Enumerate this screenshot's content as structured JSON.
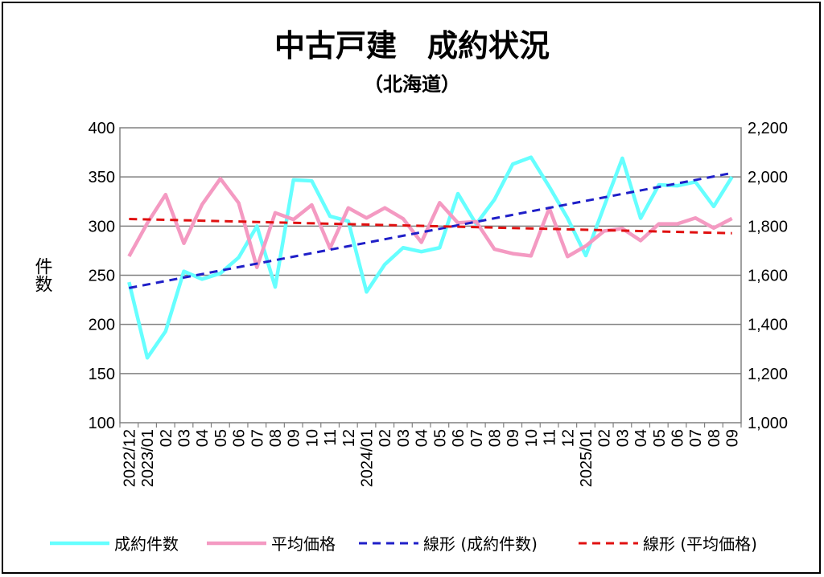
{
  "chart_data": {
    "type": "line",
    "title": "中古戸建　成約状況",
    "subtitle": "（北海道）",
    "ylabel_left": "件数",
    "ylim_left": [
      100,
      400
    ],
    "yticks_left": [
      "100",
      "150",
      "200",
      "250",
      "300",
      "350",
      "400"
    ],
    "ylim_right": [
      1000,
      2200
    ],
    "yticks_right": [
      "1,000",
      "1,200",
      "1,400",
      "1,600",
      "1,800",
      "2,000",
      "2,200"
    ],
    "x_tick_labels": [
      "2022/12",
      "2023/01",
      "02",
      "03",
      "04",
      "05",
      "06",
      "07",
      "08",
      "09",
      "10",
      "11",
      "12",
      "2024/01",
      "02",
      "03",
      "04",
      "05",
      "06",
      "07",
      "08",
      "09",
      "10",
      "11",
      "12",
      "2025/01",
      "02",
      "03",
      "04",
      "05",
      "06",
      "07",
      "08",
      "09"
    ],
    "grid": true,
    "legend_position": "bottom",
    "series": [
      {
        "name": "成約件数",
        "axis": "left",
        "color": "#66ffff",
        "values": [
          243,
          166,
          193,
          254,
          246,
          252,
          268,
          300,
          238,
          347,
          346,
          310,
          305,
          233,
          261,
          278,
          274,
          278,
          333,
          302,
          327,
          363,
          370,
          340,
          308,
          270,
          320,
          369,
          308,
          342,
          341,
          345,
          320,
          350
        ]
      },
      {
        "name": "平均価格",
        "axis": "right",
        "color": "#f49ac2",
        "values": [
          1677,
          1812,
          1928,
          1730,
          1888,
          1993,
          1894,
          1632,
          1854,
          1827,
          1886,
          1710,
          1874,
          1833,
          1874,
          1830,
          1734,
          1895,
          1813,
          1818,
          1706,
          1688,
          1679,
          1873,
          1676,
          1719,
          1780,
          1790,
          1741,
          1809,
          1809,
          1833,
          1792,
          1831
        ]
      },
      {
        "name": "線形 (成約件数)",
        "axis": "left",
        "color": "#1f1fc8",
        "dashed": true,
        "values": [
          237,
          354
        ]
      },
      {
        "name": "線形 (平均価格)",
        "axis": "right",
        "color": "#e01010",
        "dashed": true,
        "values": [
          1829,
          1771
        ]
      }
    ]
  }
}
